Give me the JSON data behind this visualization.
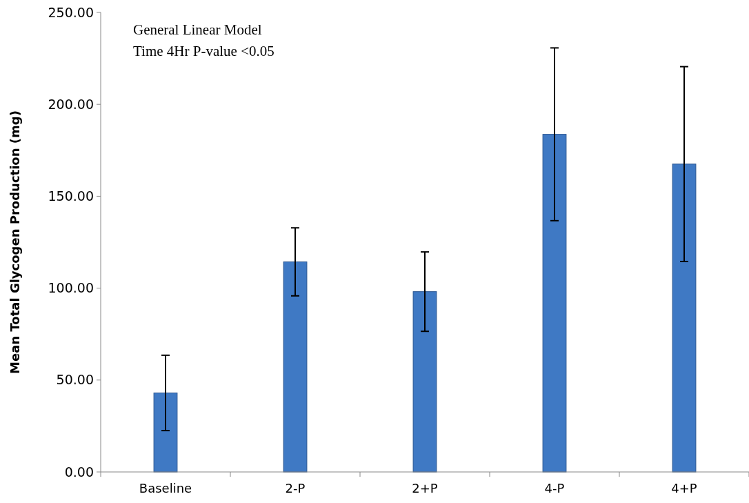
{
  "chart_data": {
    "type": "bar",
    "ylabel": "Mean Total Glycogen Production (mg)",
    "annotations": [
      "General Linear Model\nTime 4Hr P-value <0.05"
    ],
    "categories": [
      "Baseline",
      "2-P",
      "2+P",
      "4-P",
      "4+P"
    ],
    "values": [
      43,
      114.3,
      98.1,
      183.7,
      167.5
    ],
    "errors": [
      20.5,
      18.5,
      21.6,
      47,
      53
    ],
    "color": "#3f79c4",
    "ylim": [
      0,
      250
    ],
    "yticks": [
      {
        "value": 0,
        "label": "0.00"
      },
      {
        "value": 50,
        "label": "50.00"
      },
      {
        "value": 100,
        "label": "100.00"
      },
      {
        "value": 150,
        "label": "150.00"
      },
      {
        "value": 200,
        "label": "200.00"
      },
      {
        "value": 250,
        "label": "250.00"
      }
    ]
  }
}
